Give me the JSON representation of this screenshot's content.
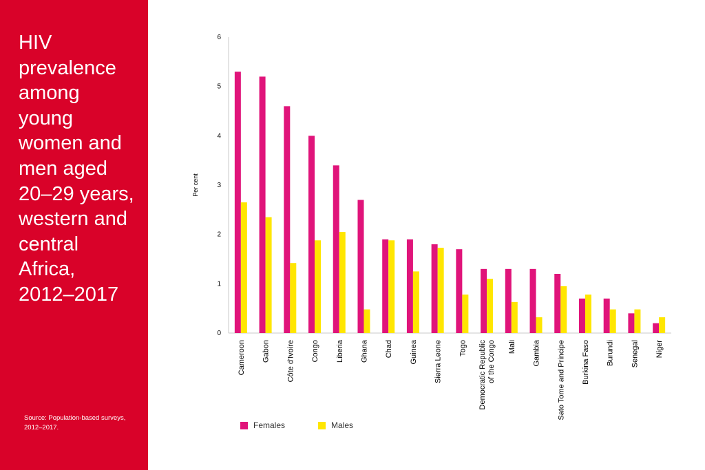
{
  "sidebar": {
    "title": "HIV\nprevalence\namong\nyoung\nwomen and\nmen aged\n20–29 years,\nwestern and\ncentral\nAfrica,\n2012–2017",
    "source": "Source: Population-based surveys,\n2012–2017.",
    "background_color": "#d90229"
  },
  "chart_data": {
    "type": "bar",
    "title": "HIV prevalence among young women and men aged 20–29 years, western and central Africa, 2012–2017",
    "xlabel": "",
    "ylabel": "Per cent",
    "ylim": [
      0,
      6
    ],
    "yticks": [
      0,
      1,
      2,
      3,
      4,
      5,
      6
    ],
    "grid": false,
    "legend_position": "bottom-left",
    "categories": [
      "Cameroon",
      "Gabon",
      "Côte d'Ivoire",
      "Congo",
      "Liberia",
      "Ghana",
      "Chad",
      "Guinea",
      "Sierra Leone",
      "Togo",
      [
        "Democratic Republic",
        "of the Congo"
      ],
      "Mali",
      "Gambia",
      "Sato Tome and Principe",
      "Burkina Faso",
      "Burundi",
      "Senegal",
      "Niger"
    ],
    "series": [
      {
        "name": "Females",
        "color": "#e0147a",
        "values": [
          5.3,
          5.2,
          4.6,
          4.0,
          3.4,
          2.7,
          1.9,
          1.9,
          1.8,
          1.7,
          1.3,
          1.3,
          1.3,
          1.2,
          0.7,
          0.7,
          0.4,
          0.2
        ]
      },
      {
        "name": "Males",
        "color": "#ffe600",
        "values": [
          2.65,
          2.35,
          1.42,
          1.88,
          2.05,
          0.48,
          1.88,
          1.25,
          1.73,
          0.78,
          1.1,
          0.63,
          0.32,
          0.95,
          0.78,
          0.48,
          0.48,
          0.32
        ]
      }
    ]
  }
}
